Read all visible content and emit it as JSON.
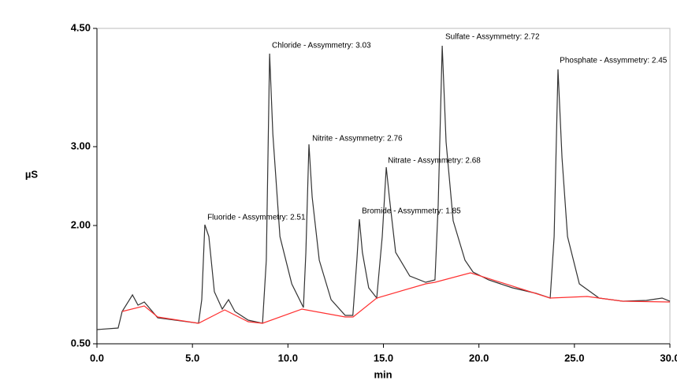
{
  "chart_data": {
    "type": "line",
    "xlabel": "min",
    "ylabel": "µS",
    "xlim": [
      0,
      30
    ],
    "ylim": [
      0.5,
      4.5
    ],
    "xticks": [
      {
        "value": 0,
        "label": "0.0"
      },
      {
        "value": 5,
        "label": "5.0"
      },
      {
        "value": 10,
        "label": "10.0"
      },
      {
        "value": 15,
        "label": "15.0"
      },
      {
        "value": 20,
        "label": "20.0"
      },
      {
        "value": 25,
        "label": "25.0"
      },
      {
        "value": 30,
        "label": "30.0"
      }
    ],
    "yticks": [
      {
        "value": 0.5,
        "label": "0.50"
      },
      {
        "value": 2,
        "label": "2.00"
      },
      {
        "value": 3,
        "label": "3.00"
      },
      {
        "value": 4.5,
        "label": "4.50"
      }
    ],
    "series": [
      {
        "color": "#333333",
        "x": [
          0,
          1.11,
          1.32,
          1.86,
          2.15,
          2.48,
          3.18,
          4.42,
          5.32,
          5.49,
          5.65,
          5.86,
          6.15,
          6.56,
          6.89,
          7.22,
          7.92,
          8.67,
          8.87,
          9.04,
          9.21,
          9.58,
          10.2,
          10.81,
          10.94,
          11.1,
          11.27,
          11.64,
          12.26,
          13.0,
          13.4,
          13.61,
          13.74,
          13.9,
          14.23,
          14.65,
          14.94,
          15.15,
          15.31,
          15.64,
          16.38,
          17.21,
          17.7,
          17.87,
          18.08,
          18.28,
          18.65,
          19.27,
          19.69,
          20.51,
          21.75,
          22.99,
          23.73,
          23.94,
          24.14,
          24.35,
          24.64,
          25.26,
          26.29,
          27.53,
          28.77,
          29.59,
          30.0
        ],
        "values": [
          0.68,
          0.7,
          0.91,
          1.12,
          0.99,
          1.03,
          0.83,
          0.79,
          0.76,
          1.06,
          2.01,
          1.86,
          1.16,
          0.94,
          1.06,
          0.91,
          0.8,
          0.76,
          1.56,
          4.18,
          3.16,
          1.86,
          1.26,
          0.96,
          1.66,
          3.03,
          2.36,
          1.56,
          1.06,
          0.86,
          0.86,
          1.56,
          2.08,
          1.66,
          1.21,
          1.08,
          1.86,
          2.74,
          2.36,
          1.66,
          1.36,
          1.28,
          1.31,
          2.26,
          4.28,
          3.06,
          2.06,
          1.56,
          1.41,
          1.31,
          1.21,
          1.14,
          1.08,
          1.86,
          3.98,
          2.86,
          1.86,
          1.26,
          1.08,
          1.04,
          1.05,
          1.08,
          1.04
        ]
      },
      {
        "color": "#ff3030",
        "x": [
          1.32,
          2.48,
          3.18,
          5.32,
          6.69,
          7.92,
          8.67,
          10.73,
          13.0,
          13.41,
          14.65,
          17.21,
          17.7,
          19.56,
          23.73,
          25.67,
          27.53,
          30.0
        ],
        "values": [
          0.91,
          0.98,
          0.84,
          0.76,
          0.93,
          0.78,
          0.76,
          0.94,
          0.84,
          0.84,
          1.08,
          1.26,
          1.28,
          1.4,
          1.08,
          1.1,
          1.04,
          1.03
        ]
      }
    ],
    "annotations": [
      {
        "text": "Fluoride - Assymmetry: 2.51",
        "x": 5.78,
        "y": 2.1
      },
      {
        "text": "Chloride - Assymmetry: 3.03",
        "x": 9.16,
        "y": 4.28
      },
      {
        "text": "Nitrite - Assymmetry: 2.76",
        "x": 11.27,
        "y": 3.1
      },
      {
        "text": "Bromide - Assymmetry: 1.85",
        "x": 13.87,
        "y": 2.18
      },
      {
        "text": "Nitrate - Assymmetry: 2.68",
        "x": 15.23,
        "y": 2.82
      },
      {
        "text": "Sulfate - Assymmetry: 2.72",
        "x": 18.24,
        "y": 4.39
      },
      {
        "text": "Phosphate - Assymmetry: 2.45",
        "x": 24.23,
        "y": 4.09
      }
    ]
  }
}
